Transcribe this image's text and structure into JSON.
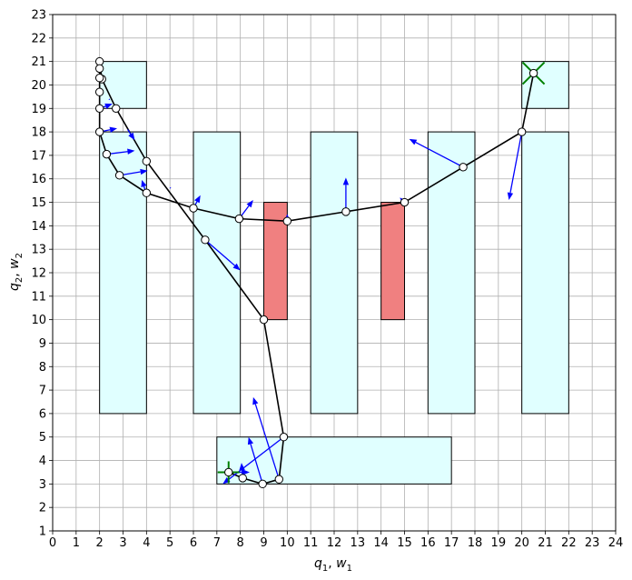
{
  "chart_data": {
    "type": "scatter",
    "xlabel_main": "q",
    "xlabel_sub1": "1",
    "xlabel_sep": ", ",
    "xlabel_main2": "w",
    "xlabel_sub2": "1",
    "ylabel_main": "q",
    "ylabel_sub1": "2",
    "ylabel_sep": ", ",
    "ylabel_main2": "w",
    "ylabel_sub2": "2",
    "xlim": [
      0,
      24
    ],
    "ylim": [
      1,
      23
    ],
    "xticks": [
      0,
      1,
      2,
      3,
      4,
      5,
      6,
      7,
      8,
      9,
      10,
      11,
      12,
      13,
      14,
      15,
      16,
      17,
      18,
      19,
      20,
      21,
      22,
      23,
      24
    ],
    "yticks": [
      1,
      2,
      3,
      4,
      5,
      6,
      7,
      8,
      9,
      10,
      11,
      12,
      13,
      14,
      15,
      16,
      17,
      18,
      19,
      20,
      21,
      22,
      23
    ],
    "grid": true,
    "colors": {
      "cyan_region": "#e0ffff",
      "red_obstacle": "#f08080",
      "path": "#000000",
      "arrow": "#0000ff",
      "marker_fill": "#ffffff",
      "start_goal": "#008000"
    },
    "cyan_regions": [
      {
        "x": [
          2,
          4
        ],
        "y": [
          19,
          21
        ]
      },
      {
        "x": [
          2,
          4
        ],
        "y": [
          6,
          18
        ]
      },
      {
        "x": [
          6,
          8
        ],
        "y": [
          6,
          18
        ]
      },
      {
        "x": [
          11,
          13
        ],
        "y": [
          6,
          18
        ]
      },
      {
        "x": [
          16,
          18
        ],
        "y": [
          6,
          18
        ]
      },
      {
        "x": [
          20,
          22
        ],
        "y": [
          6,
          18
        ]
      },
      {
        "x": [
          20,
          22
        ],
        "y": [
          19,
          21
        ]
      },
      {
        "x": [
          7,
          17
        ],
        "y": [
          3,
          5
        ]
      }
    ],
    "red_obstacles": [
      {
        "x": [
          9,
          10
        ],
        "y": [
          10,
          15
        ]
      },
      {
        "x": [
          14,
          15
        ],
        "y": [
          10,
          15
        ]
      }
    ],
    "path_points": [
      [
        7.5,
        3.5
      ],
      [
        8.1,
        3.25
      ],
      [
        8.95,
        3.0
      ],
      [
        9.65,
        3.2
      ],
      [
        9.85,
        5.0
      ],
      [
        9.0,
        10.0
      ],
      [
        6.5,
        13.4
      ],
      [
        4.0,
        16.75
      ],
      [
        2.7,
        19.0
      ],
      [
        2.1,
        20.25
      ],
      [
        2.0,
        21.0
      ],
      [
        2.0,
        20.7
      ],
      [
        2.0,
        20.3
      ],
      [
        2.0,
        19.7
      ],
      [
        2.0,
        19.0
      ],
      [
        2.0,
        18.0
      ],
      [
        2.3,
        17.05
      ],
      [
        2.85,
        16.15
      ],
      [
        4.0,
        15.4
      ],
      [
        6.0,
        14.75
      ],
      [
        7.95,
        14.3
      ],
      [
        10.0,
        14.2
      ],
      [
        12.5,
        14.6
      ],
      [
        15.0,
        15.0
      ],
      [
        17.5,
        16.5
      ],
      [
        20.0,
        18.0
      ],
      [
        20.5,
        20.5
      ]
    ],
    "arrows": [
      {
        "x": 7.5,
        "y": 3.5,
        "dx": 0.9,
        "dy": 0.0
      },
      {
        "x": 8.1,
        "y": 3.25,
        "dx": -0.05,
        "dy": 0.65
      },
      {
        "x": 8.95,
        "y": 3.0,
        "dx": -0.6,
        "dy": 2.0
      },
      {
        "x": 9.65,
        "y": 3.2,
        "dx": -1.1,
        "dy": 3.5
      },
      {
        "x": 9.85,
        "y": 5.0,
        "dx": -2.6,
        "dy": -2.0
      },
      {
        "x": 6.5,
        "y": 13.4,
        "dx": 1.5,
        "dy": -1.3
      },
      {
        "x": 5.0,
        "y": 15.6,
        "dx": 0.05,
        "dy": 0.05
      },
      {
        "x": 4.0,
        "y": 16.75,
        "dx": -0.05,
        "dy": 0.05
      },
      {
        "x": 3.2,
        "y": 18.1,
        "dx": 0.3,
        "dy": -0.45
      },
      {
        "x": 2.4,
        "y": 19.4,
        "dx": 0.05,
        "dy": -0.05
      },
      {
        "x": 2.0,
        "y": 19.0,
        "dx": 0.55,
        "dy": 0.2
      },
      {
        "x": 2.0,
        "y": 18.0,
        "dx": 0.75,
        "dy": 0.15
      },
      {
        "x": 2.3,
        "y": 17.05,
        "dx": 1.2,
        "dy": 0.15
      },
      {
        "x": 2.85,
        "y": 16.15,
        "dx": 1.2,
        "dy": 0.2
      },
      {
        "x": 3.95,
        "y": 15.5,
        "dx": -0.15,
        "dy": 0.45
      },
      {
        "x": 6.0,
        "y": 14.75,
        "dx": 0.3,
        "dy": 0.55
      },
      {
        "x": 7.95,
        "y": 14.3,
        "dx": 0.6,
        "dy": 0.8
      },
      {
        "x": 10.0,
        "y": 14.2,
        "dx": 0.0,
        "dy": 0.3
      },
      {
        "x": 12.5,
        "y": 14.6,
        "dx": 0.0,
        "dy": 1.45
      },
      {
        "x": 15.0,
        "y": 15.0,
        "dx": -0.2,
        "dy": 0.2
      },
      {
        "x": 17.5,
        "y": 16.5,
        "dx": -2.3,
        "dy": 1.2
      },
      {
        "x": 20.0,
        "y": 18.0,
        "dx": -0.55,
        "dy": -2.9
      }
    ],
    "start": {
      "x": 7.5,
      "y": 3.5,
      "marker": "plus"
    },
    "goal": {
      "x": 20.5,
      "y": 20.5,
      "marker": "x"
    }
  }
}
